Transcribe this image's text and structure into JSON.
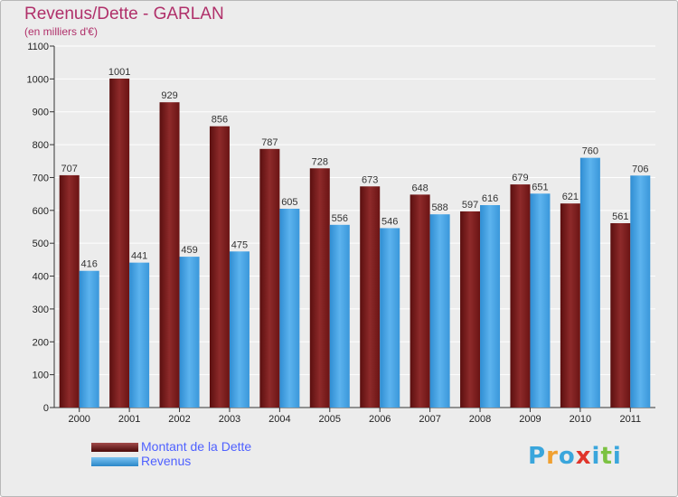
{
  "chart_data": {
    "type": "bar",
    "title": "Revenus/Dette - GARLAN",
    "subtitle": "(en milliers d'€)",
    "categories": [
      "2000",
      "2001",
      "2002",
      "2003",
      "2004",
      "2005",
      "2006",
      "2007",
      "2008",
      "2009",
      "2010",
      "2011"
    ],
    "series": [
      {
        "name": "Montant de la Dette",
        "values": [
          707,
          1001,
          929,
          856,
          787,
          728,
          673,
          648,
          597,
          679,
          621,
          561
        ],
        "color": "#7b1c1c"
      },
      {
        "name": "Revenus",
        "values": [
          416,
          441,
          459,
          475,
          605,
          556,
          546,
          588,
          616,
          651,
          760,
          706
        ],
        "color": "#4ba3e3"
      }
    ],
    "yticks": [
      0,
      100,
      200,
      300,
      400,
      500,
      600,
      700,
      800,
      900,
      1000,
      1100
    ],
    "ylim": [
      0,
      1100
    ],
    "grid": true,
    "legend": "bottom-left"
  },
  "logo": {
    "letters": [
      "P",
      "r",
      "o",
      "x",
      "i",
      "t",
      "i"
    ],
    "colors": [
      "#3aa6dc",
      "#f0a030",
      "#3aa6dc",
      "#e0352b",
      "#3aa6dc",
      "#7cc242",
      "#3aa6dc"
    ]
  }
}
